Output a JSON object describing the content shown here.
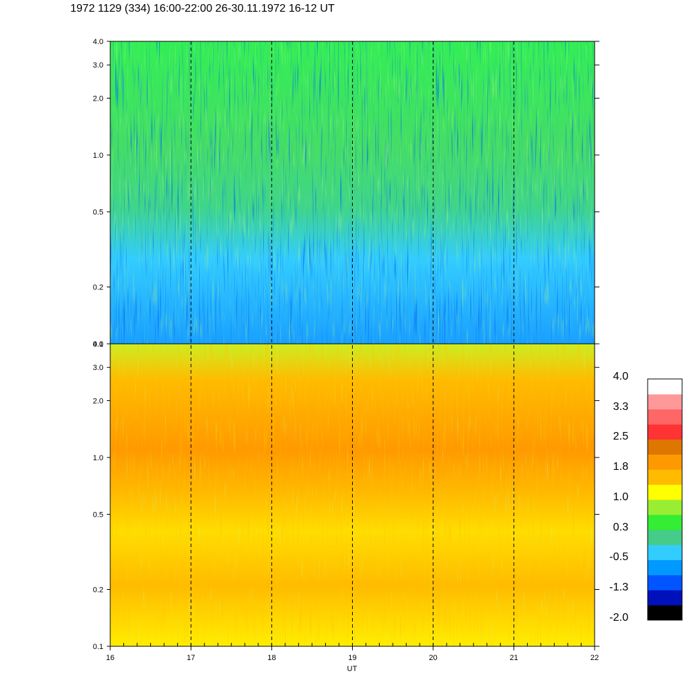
{
  "title": "1972 1129 (334) 16:00-22:00 26-30.11.1972  16-12 UT",
  "chart_data": [
    {
      "type": "heatmap",
      "panel": "upper",
      "ylim": [
        0.1,
        4.0
      ],
      "yscale": "log",
      "ytick_labels": [
        "4.0",
        "3.0",
        "2.0",
        "1.0",
        "0.5",
        "0.2",
        "0.1"
      ],
      "ytick_values": [
        4.0,
        3.0,
        2.0,
        1.0,
        0.5,
        0.2,
        0.1
      ],
      "xlim": [
        16,
        22
      ],
      "dominant_colors": [
        "#1aa0ff",
        "#33ccff",
        "#44dd88",
        "#33ee33",
        "#0044ff"
      ]
    },
    {
      "type": "heatmap",
      "panel": "lower",
      "ylim": [
        0.1,
        4.0
      ],
      "yscale": "log",
      "ytick_labels": [
        "4.0",
        "3.0",
        "2.0",
        "1.0",
        "0.5",
        "0.2",
        "0.1"
      ],
      "ytick_values": [
        4.0,
        3.0,
        2.0,
        1.0,
        0.5,
        0.2,
        0.1
      ],
      "xlim": [
        16,
        22
      ],
      "xticks": [
        "16",
        "17",
        "18",
        "19",
        "20",
        "21",
        "22"
      ],
      "xlabel": "UT",
      "dominant_colors": [
        "#ffff00",
        "#ffbb00",
        "#ff9900",
        "#99ee33",
        "#33ee33"
      ]
    }
  ],
  "colorbar": {
    "labels": [
      "4.0",
      "3.3",
      "2.5",
      "1.8",
      "1.0",
      "0.3",
      "-0.5",
      "-1.3",
      "-2.0"
    ],
    "colors": [
      "#000000",
      "#0011bb",
      "#0055ff",
      "#0099ff",
      "#33ccff",
      "#44cc88",
      "#33ee33",
      "#99ee33",
      "#ffff00",
      "#ffbb00",
      "#ff9900",
      "#dd7700",
      "#ff3333",
      "#ff6666",
      "#ff9999",
      "#ffffff"
    ]
  }
}
